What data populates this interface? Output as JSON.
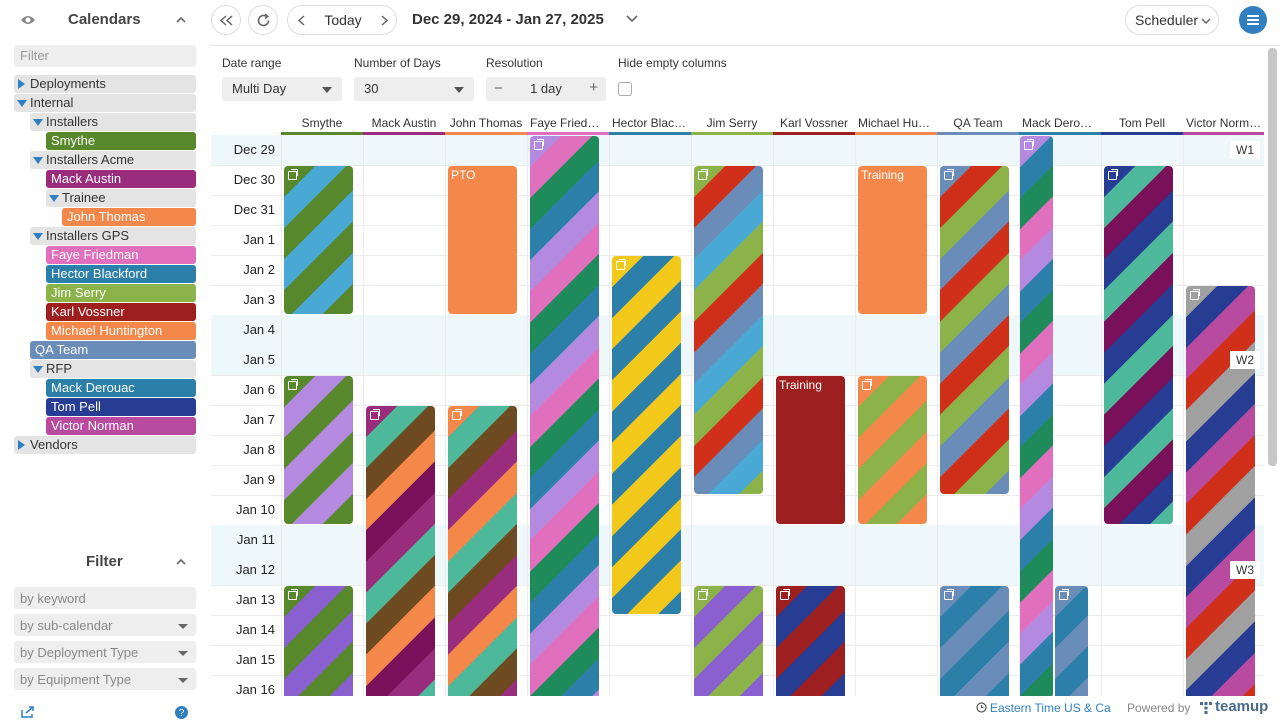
{
  "sidebar": {
    "title": "Calendars",
    "filter_placeholder": "Filter",
    "tree": [
      {
        "label": "Deployments",
        "type": "group",
        "collapsed": true,
        "level": 0
      },
      {
        "label": "Internal",
        "type": "group",
        "level": 0
      },
      {
        "label": "Installers",
        "type": "group",
        "level": 1
      },
      {
        "label": "Smythe",
        "type": "cal",
        "level": 2,
        "color": "#58882c"
      },
      {
        "label": "Installers Acme",
        "type": "group",
        "level": 1
      },
      {
        "label": "Mack Austin",
        "type": "cal",
        "level": 2,
        "color": "#9a2c7d"
      },
      {
        "label": "Trainee",
        "type": "group",
        "level": 2
      },
      {
        "label": "John Thomas",
        "type": "cal",
        "level": 3,
        "color": "#f4874a"
      },
      {
        "label": "Installers GPS",
        "type": "group",
        "level": 1
      },
      {
        "label": "Faye Friedman",
        "type": "cal",
        "level": 2,
        "color": "#e06fbd"
      },
      {
        "label": "Hector Blackford",
        "type": "cal",
        "level": 2,
        "color": "#2b7fa8"
      },
      {
        "label": "Jim Serry",
        "type": "cal",
        "level": 2,
        "color": "#8bb34a"
      },
      {
        "label": "Karl Vossner",
        "type": "cal",
        "level": 2,
        "color": "#9e1f1f"
      },
      {
        "label": "Michael Huntington",
        "type": "cal",
        "level": 2,
        "color": "#f4874a"
      },
      {
        "label": "QA Team",
        "type": "cal",
        "level": 1,
        "color": "#6a8cb8"
      },
      {
        "label": "RFP",
        "type": "group",
        "level": 1
      },
      {
        "label": "Mack Derouac",
        "type": "cal",
        "level": 2,
        "color": "#2b7fa8"
      },
      {
        "label": "Tom Pell",
        "type": "cal",
        "level": 2,
        "color": "#273c93"
      },
      {
        "label": "Victor Norman",
        "type": "cal",
        "level": 2,
        "color": "#b84aa0"
      },
      {
        "label": "Vendors",
        "type": "group",
        "collapsed": true,
        "level": 0
      }
    ]
  },
  "filter": {
    "title": "Filter",
    "keyword_placeholder": "by keyword",
    "sub_calendar": "by sub-calendar",
    "deployment_type": "by Deployment Type",
    "equipment_type": "by Equipment Type"
  },
  "toolbar": {
    "today": "Today",
    "date_range": "Dec 29, 2024 - Jan 27, 2025",
    "view": "Scheduler"
  },
  "options": {
    "date_range_label": "Date range",
    "date_range_value": "Multi Day",
    "days_label": "Number of Days",
    "days_value": "30",
    "resolution_label": "Resolution",
    "resolution_value": "1 day",
    "minus": "−",
    "plus": "+",
    "hide_label": "Hide empty columns",
    "hide_checked": false
  },
  "columns": [
    {
      "name": "Smythe",
      "color": "#58882c"
    },
    {
      "name": "Mack Austin",
      "color": "#9a2c7d"
    },
    {
      "name": "John Thomas",
      "color": "#f4874a"
    },
    {
      "name": "Faye Friedman",
      "color": "#e06fbd"
    },
    {
      "name": "Hector Blackford",
      "color": "#2b7fa8"
    },
    {
      "name": "Jim Serry",
      "color": "#8bb34a"
    },
    {
      "name": "Karl Vossner",
      "color": "#9e1f1f"
    },
    {
      "name": "Michael Huntington",
      "color": "#f4874a"
    },
    {
      "name": "QA Team",
      "color": "#6a8cb8"
    },
    {
      "name": "Mack Derouac",
      "color": "#2b7fa8"
    },
    {
      "name": "Tom Pell",
      "color": "#273c93"
    },
    {
      "name": "Victor Norman",
      "color": "#b84aa0"
    }
  ],
  "rows": [
    {
      "label": "Dec 29",
      "weekend": true
    },
    {
      "label": "Dec 30"
    },
    {
      "label": "Dec 31"
    },
    {
      "label": "Jan 1"
    },
    {
      "label": "Jan 2"
    },
    {
      "label": "Jan 3"
    },
    {
      "label": "Jan 4",
      "weekend": true
    },
    {
      "label": "Jan 5",
      "weekend": true
    },
    {
      "label": "Jan 6"
    },
    {
      "label": "Jan 7"
    },
    {
      "label": "Jan 8"
    },
    {
      "label": "Jan 9"
    },
    {
      "label": "Jan 10"
    },
    {
      "label": "Jan 11",
      "weekend": true
    },
    {
      "label": "Jan 12",
      "weekend": true
    },
    {
      "label": "Jan 13"
    },
    {
      "label": "Jan 14"
    },
    {
      "label": "Jan 15"
    },
    {
      "label": "Jan 16"
    }
  ],
  "weeks": [
    {
      "label": "W1",
      "row": 0
    },
    {
      "label": "W2",
      "row": 7
    },
    {
      "label": "W3",
      "row": 14
    }
  ],
  "events": [
    {
      "col": 0,
      "start": 1,
      "end": 5,
      "colors": [
        "#58882c",
        "#4aa8d4"
      ],
      "multi": true
    },
    {
      "col": 0,
      "start": 8,
      "end": 12,
      "colors": [
        "#58882c",
        "#b48ae0"
      ],
      "multi": true
    },
    {
      "col": 0,
      "start": 15,
      "end": 18,
      "colors": [
        "#58882c",
        "#8a5fd0"
      ],
      "multi": true
    },
    {
      "col": 1,
      "start": 9,
      "end": 18,
      "colors": [
        "#9a2c7d",
        "#4db89a",
        "#6e4a20",
        "#f4874a",
        "#7a0f5a"
      ],
      "multi": true
    },
    {
      "col": 2,
      "start": 1,
      "end": 5,
      "colors": [
        "#f4874a"
      ],
      "title": "PTO"
    },
    {
      "col": 2,
      "start": 9,
      "end": 18,
      "colors": [
        "#f4874a",
        "#4db89a",
        "#6e4a20",
        "#9a2c7d"
      ],
      "multi": true
    },
    {
      "col": 3,
      "start": 0,
      "end": 18,
      "colors": [
        "#b48ae0",
        "#e06fbd",
        "#1f8a5a",
        "#2b7fa8"
      ],
      "multi": true
    },
    {
      "col": 4,
      "start": 4,
      "end": 15,
      "colors": [
        "#f2c81a",
        "#2b7fa8"
      ],
      "multi": true
    },
    {
      "col": 5,
      "start": 1,
      "end": 11,
      "colors": [
        "#8bb34a",
        "#d0301a",
        "#6a8cb8",
        "#4aa8d4"
      ],
      "multi": true
    },
    {
      "col": 5,
      "start": 15,
      "end": 18,
      "colors": [
        "#8bb34a",
        "#8a5fd0"
      ],
      "multi": true
    },
    {
      "col": 6,
      "start": 8,
      "end": 12,
      "colors": [
        "#9e1f1f"
      ],
      "title": "Training"
    },
    {
      "col": 6,
      "start": 15,
      "end": 18,
      "colors": [
        "#9e1f1f",
        "#273c93"
      ],
      "multi": true
    },
    {
      "col": 7,
      "start": 1,
      "end": 5,
      "colors": [
        "#f4874a"
      ],
      "title": "Training"
    },
    {
      "col": 7,
      "start": 8,
      "end": 12,
      "colors": [
        "#f4874a",
        "#8bb34a"
      ],
      "multi": true
    },
    {
      "col": 8,
      "start": 1,
      "end": 11,
      "colors": [
        "#6a8cb8",
        "#d0301a",
        "#8bb34a"
      ],
      "multi": true
    },
    {
      "col": 8,
      "start": 15,
      "end": 18,
      "colors": [
        "#6a8cb8",
        "#2b7fa8"
      ],
      "multi": true
    },
    {
      "col": 9,
      "start": 0,
      "end": 18,
      "colors": [
        "#b48ae0",
        "#2b7fa8",
        "#1f8a5a",
        "#e06fbd"
      ],
      "multi": true,
      "half": true
    },
    {
      "col": 9,
      "start": 15,
      "end": 18,
      "colors": [
        "#6a8cb8",
        "#2b7fa8"
      ],
      "multi": true,
      "half2": true
    },
    {
      "col": 10,
      "start": 1,
      "end": 12,
      "colors": [
        "#273c93",
        "#4db89a",
        "#7a0f5a"
      ],
      "multi": true
    },
    {
      "col": 11,
      "start": 5,
      "end": 18,
      "colors": [
        "#a0a0a0",
        "#273c93",
        "#b84aa0",
        "#d0301a"
      ],
      "multi": true
    }
  ],
  "footer": {
    "timezone": "Eastern Time US & Ca",
    "powered": "Powered by",
    "brand": "teamup"
  }
}
